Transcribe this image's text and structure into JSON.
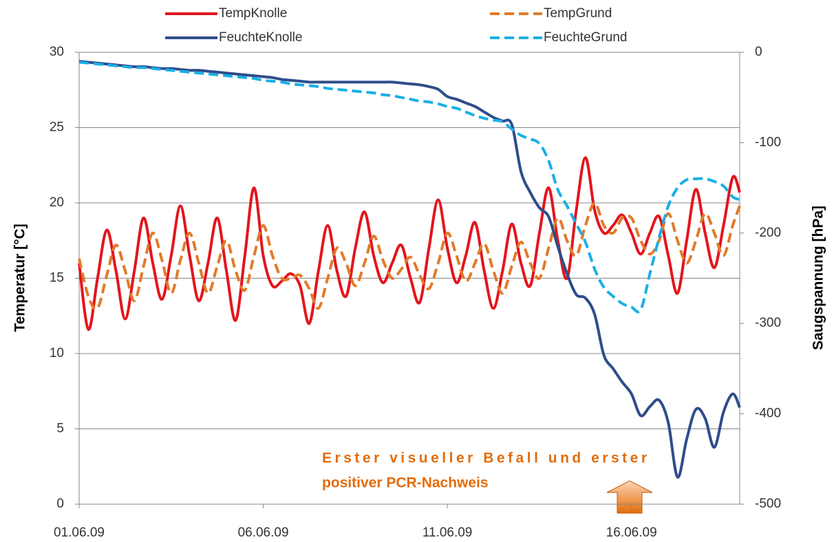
{
  "chart_data": {
    "type": "line",
    "ylabel": "Temperatur [°C]",
    "y2label": "Saugspannung [hPa]",
    "x": [
      0,
      0.25,
      0.5,
      0.75,
      1,
      1.25,
      1.5,
      1.75,
      2,
      2.25,
      2.5,
      2.75,
      3,
      3.25,
      3.5,
      3.75,
      4,
      4.25,
      4.5,
      4.75,
      5,
      5.25,
      5.5,
      5.75,
      6,
      6.25,
      6.5,
      6.75,
      7,
      7.25,
      7.5,
      7.75,
      8,
      8.25,
      8.5,
      8.75,
      9,
      9.25,
      9.5,
      9.75,
      10,
      10.25,
      10.5,
      10.75,
      11,
      11.25,
      11.5,
      11.75,
      12,
      12.25,
      12.5,
      12.75,
      13,
      13.25,
      13.5,
      13.75,
      14,
      14.25,
      14.5,
      14.75,
      15,
      15.25,
      15.5,
      15.75,
      16,
      16.25,
      16.5,
      16.75,
      17,
      17.25,
      17.5,
      17.75,
      17.94
    ],
    "xlim": [
      0,
      17.94
    ],
    "xticks": [
      {
        "value": 0,
        "label": "01.06.09"
      },
      {
        "value": 5,
        "label": "06.06.09"
      },
      {
        "value": 10,
        "label": "11.06.09"
      },
      {
        "value": 15,
        "label": "16.06.09"
      }
    ],
    "ylim": [
      0,
      30
    ],
    "yticks": [
      0,
      5,
      10,
      15,
      20,
      25,
      30
    ],
    "y2lim": [
      -500,
      0
    ],
    "y2ticks": [
      -500,
      -400,
      -300,
      -200,
      -100,
      0
    ],
    "grid": true,
    "legend": "top",
    "series": [
      {
        "name": "TempKnolle",
        "color": "#e3151d",
        "style": "solid",
        "axis": "y",
        "values": [
          16,
          11.6,
          15,
          18.2,
          15.5,
          12.3,
          15.5,
          19.0,
          16,
          13.6,
          16.5,
          19.8,
          16.5,
          13.5,
          16,
          19.0,
          15.5,
          12.2,
          16.5,
          21.0,
          16.5,
          14.5,
          14.8,
          15.3,
          14.5,
          12.0,
          15.5,
          18.5,
          15.5,
          13.8,
          17,
          19.4,
          16.5,
          14.7,
          16,
          17.2,
          15,
          13.4,
          17,
          20.2,
          17,
          14.7,
          16.5,
          18.7,
          15.5,
          13.0,
          15.5,
          18.6,
          16,
          14.5,
          18,
          21.0,
          17.5,
          15.0,
          19.5,
          23.0,
          19.5,
          18.0,
          18.5,
          19.2,
          18,
          16.6,
          18,
          19.1,
          16.5,
          14.0,
          17.5,
          20.9,
          18,
          15.7,
          18.5,
          21.7,
          20.7
        ]
      },
      {
        "name": "TempGrund",
        "color": "#e07b2a",
        "style": "dashed",
        "axis": "y",
        "values": [
          16.3,
          13.8,
          13.0,
          15.2,
          17.2,
          15.5,
          13.5,
          15.8,
          18.0,
          16.2,
          14.0,
          16.2,
          18.0,
          16.0,
          14.0,
          15.8,
          17.5,
          15.5,
          14.2,
          16.5,
          18.5,
          16.5,
          15.0,
          15.0,
          15.2,
          14.3,
          13.0,
          15.0,
          17.0,
          16.0,
          14.5,
          16.0,
          17.8,
          16.2,
          15.0,
          15.6,
          16.4,
          15.2,
          14.3,
          16.0,
          18.0,
          16.5,
          14.8,
          16.0,
          17.3,
          15.5,
          14.0,
          15.8,
          17.4,
          16.0,
          15.0,
          17.0,
          19.0,
          17.5,
          16.5,
          18.5,
          20.0,
          18.5,
          18.0,
          19.0,
          19.0,
          17.5,
          16.6,
          17.5,
          19.3,
          17.5,
          16.0,
          17.5,
          19.3,
          18.0,
          16.5,
          18.5,
          19.8
        ]
      },
      {
        "name": "FeuchteKnolle",
        "color": "#2f4d8a",
        "style": "solid",
        "axis": "y2",
        "values": [
          -10,
          -11,
          -12,
          -13,
          -14,
          -15,
          -16,
          -16,
          -17,
          -18,
          -18,
          -19,
          -20,
          -20,
          -21,
          -22,
          -23,
          -24,
          -25,
          -26,
          -27,
          -28,
          -30,
          -31,
          -32,
          -33,
          -33,
          -33,
          -33,
          -33,
          -33,
          -33,
          -33,
          -33,
          -33,
          -34,
          -35,
          -36,
          -38,
          -41,
          -49,
          -52,
          -56,
          -60,
          -66,
          -72,
          -76,
          -80,
          -132,
          -155,
          -172,
          -182,
          -215,
          -245,
          -268,
          -272,
          -290,
          -335,
          -350,
          -365,
          -378,
          -402,
          -392,
          -385,
          -410,
          -470,
          -428,
          -395,
          -405,
          -437,
          -398,
          -378,
          -393
        ]
      },
      {
        "name": "FeuchteGrund",
        "color": "#1aafe6",
        "style": "dashed",
        "axis": "y2",
        "values": [
          -11,
          -12,
          -13,
          -14,
          -15,
          -16,
          -17,
          -17,
          -18,
          -19,
          -20,
          -21,
          -22,
          -23,
          -24,
          -25,
          -26,
          -27,
          -28,
          -29,
          -31,
          -32,
          -33,
          -35,
          -36,
          -37,
          -38,
          -40,
          -41,
          -42,
          -43,
          -44,
          -45,
          -47,
          -48,
          -50,
          -52,
          -54,
          -55,
          -57,
          -60,
          -62,
          -66,
          -70,
          -73,
          -75,
          -77,
          -85,
          -92,
          -96,
          -101,
          -120,
          -152,
          -170,
          -190,
          -210,
          -240,
          -260,
          -270,
          -278,
          -282,
          -285,
          -245,
          -205,
          -170,
          -150,
          -141,
          -140,
          -140,
          -143,
          -148,
          -160,
          -163
        ]
      }
    ],
    "annotation": [
      "Erster visueller Befall und erster",
      "positiver PCR-Nachweis"
    ]
  }
}
